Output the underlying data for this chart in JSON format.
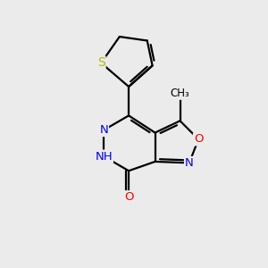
{
  "background_color": "#ebebeb",
  "atom_colors": {
    "C": "#000000",
    "N": "#0000ff",
    "O": "#ff0000",
    "S": "#b8b800",
    "H": "#000000"
  },
  "bond_color": "#000000",
  "bond_width": 1.6,
  "figsize": [
    3.0,
    3.0
  ],
  "dpi": 100,
  "xlim": [
    0,
    10
  ],
  "ylim": [
    0,
    10
  ]
}
